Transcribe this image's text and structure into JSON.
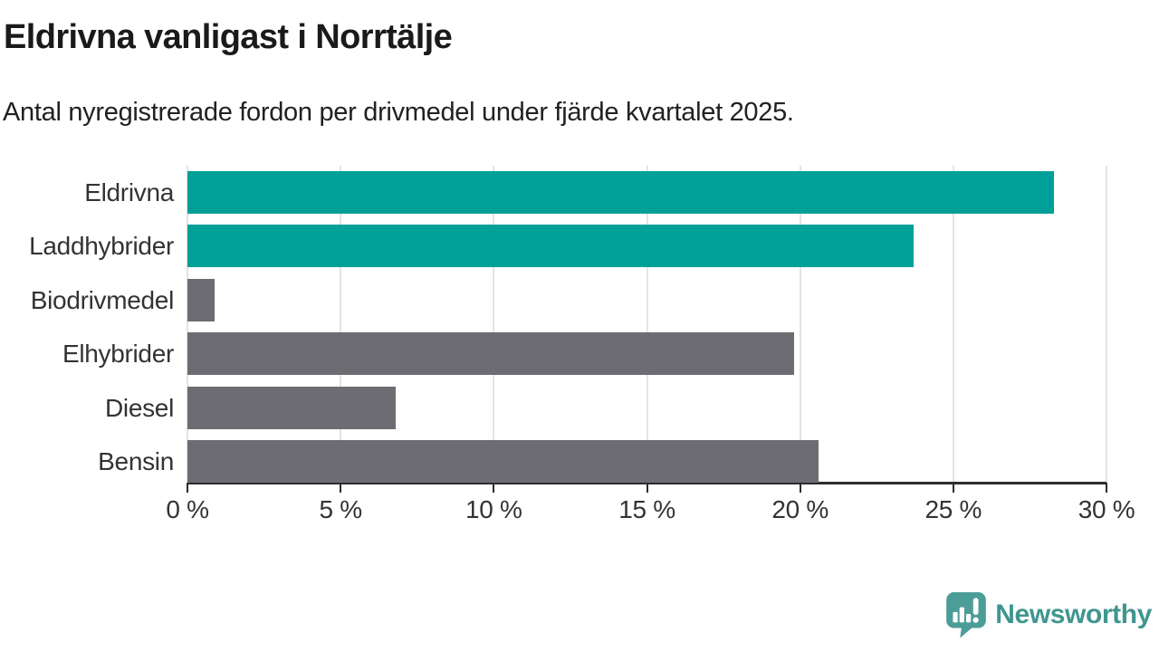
{
  "chart_data": {
    "type": "bar",
    "orientation": "horizontal",
    "title": "Eldrivna vanligast i Norrtälje",
    "subtitle": "Antal nyregistrerade fordon per drivmedel under fjärde kvartalet 2025.",
    "categories": [
      "Eldrivna",
      "Laddhybrider",
      "Biodrivmedel",
      "Elhybrider",
      "Diesel",
      "Bensin"
    ],
    "values": [
      28.3,
      23.7,
      0.9,
      19.8,
      6.8,
      20.6
    ],
    "unit": "%",
    "xlabel": "",
    "ylabel": "",
    "xlim": [
      0,
      30
    ],
    "x_ticks": [
      "0 %",
      "5 %",
      "10 %",
      "15 %",
      "20 %",
      "25 %",
      "30 %"
    ],
    "grid": true,
    "legend": "none",
    "bar_colors": [
      "#00A098",
      "#00A098",
      "#6C6C72",
      "#6C6C72",
      "#6C6C72",
      "#6C6C72"
    ],
    "colors": {
      "highlight_teal": "#00A098",
      "neutral_gray": "#6C6C72",
      "axis": "#2d2d2d",
      "gridline": "#e4e4e4",
      "label_text": "#333333",
      "title_text": "#1a1a1a"
    }
  },
  "footer": {
    "brand": "Newsworthy",
    "brand_color": "#3F968F",
    "logo_color": "#4C9D98"
  }
}
